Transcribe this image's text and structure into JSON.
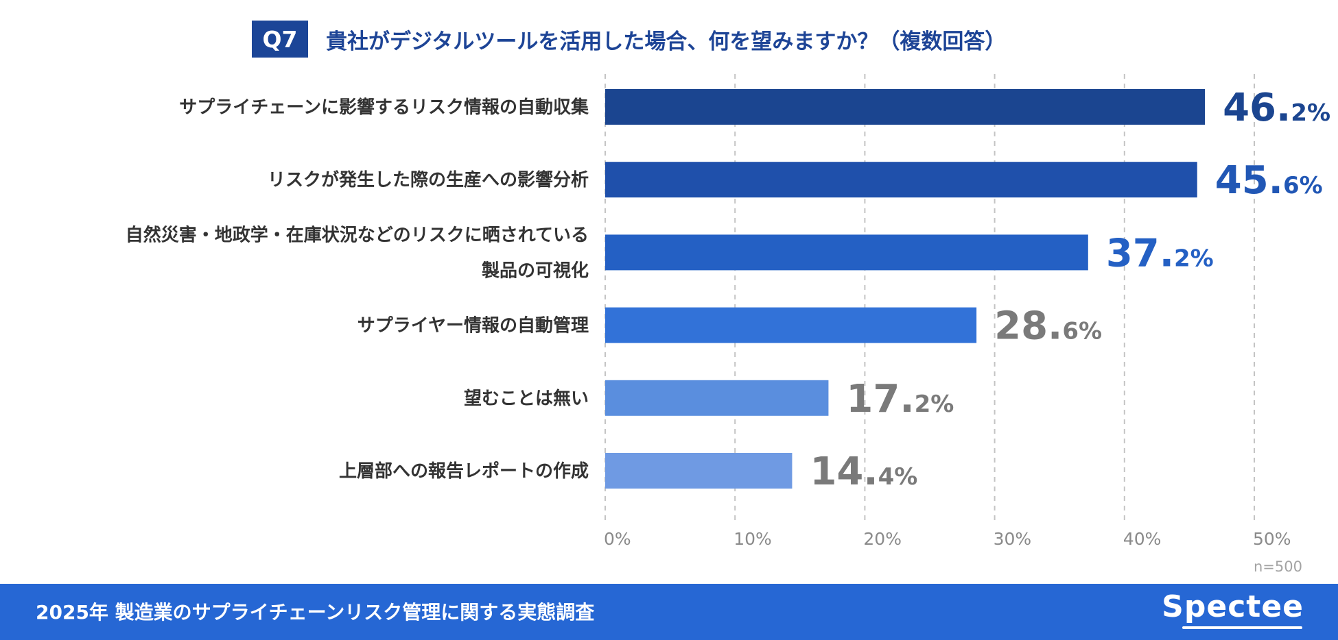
{
  "header": {
    "badge": "Q7",
    "question": "貴社がデジタルツールを活用した場合、何を望みますか？（複数回答）"
  },
  "chart_data": {
    "type": "bar",
    "orientation": "horizontal",
    "categories": [
      [
        "サプライチェーンに影響するリスク情報の自動収集"
      ],
      [
        "リスクが発生した際の生産への影響分析"
      ],
      [
        "自然災害・地政学・在庫状況などのリスクに晒されている",
        "製品の可視化"
      ],
      [
        "サプライヤー情報の自動管理"
      ],
      [
        "望むことは無い"
      ],
      [
        "上層部への報告レポートの作成"
      ]
    ],
    "values": [
      46.2,
      45.6,
      37.2,
      28.6,
      17.2,
      14.4
    ],
    "value_labels": [
      {
        "major": "46.",
        "minor": "2%"
      },
      {
        "major": "45.",
        "minor": "6%"
      },
      {
        "major": "37.",
        "minor": "2%"
      },
      {
        "major": "28.",
        "minor": "6%"
      },
      {
        "major": "17.",
        "minor": "2%"
      },
      {
        "major": "14.",
        "minor": "4%"
      }
    ],
    "bar_colors": [
      "#1b4590",
      "#1f50ab",
      "#2460c4",
      "#3272d8",
      "#5a8ede",
      "#6f9ae3"
    ],
    "label_colors": [
      "#1b4590",
      "#2157b5",
      "#2460c4",
      "#7a7a7a",
      "#7a7a7a",
      "#7a7a7a"
    ],
    "xlim": [
      0,
      50
    ],
    "xticks": [
      0,
      10,
      20,
      30,
      40,
      50
    ],
    "xtick_labels": [
      "0%",
      "10%",
      "20%",
      "30%",
      "40%",
      "50%"
    ],
    "grid": "vertical-dashed"
  },
  "note": {
    "sample_size": "n=500"
  },
  "footer": {
    "title": "2025年 製造業のサプライチェーンリスク管理に関する実態調査",
    "brand": "Spectee"
  }
}
